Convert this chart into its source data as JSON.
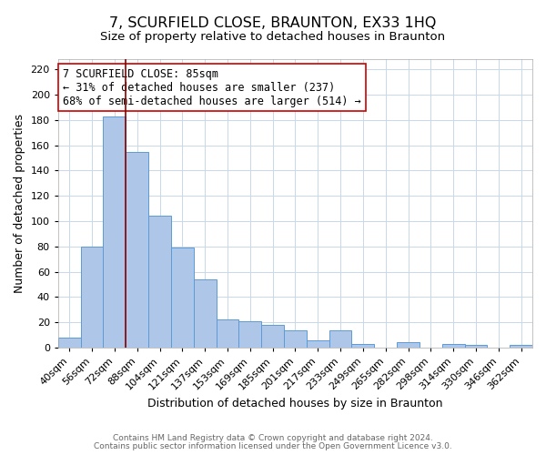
{
  "title": "7, SCURFIELD CLOSE, BRAUNTON, EX33 1HQ",
  "subtitle": "Size of property relative to detached houses in Braunton",
  "xlabel": "Distribution of detached houses by size in Braunton",
  "ylabel": "Number of detached properties",
  "footer_line1": "Contains HM Land Registry data © Crown copyright and database right 2024.",
  "footer_line2": "Contains public sector information licensed under the Open Government Licence v3.0.",
  "bin_labels": [
    "40sqm",
    "56sqm",
    "72sqm",
    "88sqm",
    "104sqm",
    "121sqm",
    "137sqm",
    "153sqm",
    "169sqm",
    "185sqm",
    "201sqm",
    "217sqm",
    "233sqm",
    "249sqm",
    "265sqm",
    "282sqm",
    "298sqm",
    "314sqm",
    "330sqm",
    "346sqm",
    "362sqm"
  ],
  "bar_heights": [
    8,
    80,
    183,
    155,
    104,
    79,
    54,
    22,
    21,
    18,
    14,
    6,
    14,
    3,
    0,
    4,
    0,
    3,
    2,
    0,
    2
  ],
  "bar_color": "#aec6e8",
  "bar_edge_color": "#5b9bd5",
  "vline_x": 3,
  "vline_color": "#8b0000",
  "annotation_box_line1": "7 SCURFIELD CLOSE: 85sqm",
  "annotation_box_line2": "← 31% of detached houses are smaller (237)",
  "annotation_box_line3": "68% of semi-detached houses are larger (514) →",
  "annotation_border_color": "#cc0000",
  "ylim": [
    0,
    228
  ],
  "yticks": [
    0,
    20,
    40,
    60,
    80,
    100,
    120,
    140,
    160,
    180,
    200,
    220
  ],
  "background_color": "#ffffff",
  "grid_color": "#c8d8e8",
  "title_fontsize": 11.5,
  "subtitle_fontsize": 9.5,
  "axis_label_fontsize": 9,
  "tick_fontsize": 8,
  "annotation_fontsize": 8.5,
  "footer_fontsize": 6.5
}
